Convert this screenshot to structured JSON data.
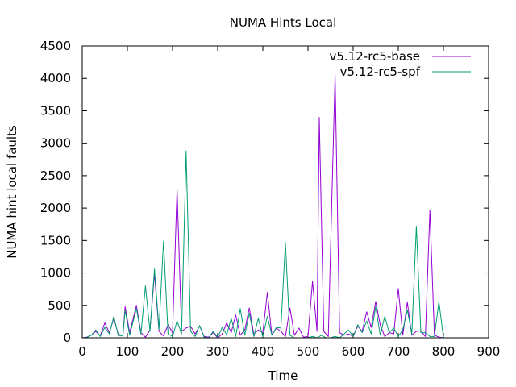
{
  "chart_data": {
    "type": "line",
    "title": "NUMA Hints Local",
    "xlabel": "Time",
    "ylabel": "NUMA hint local faults",
    "xlim": [
      0,
      900
    ],
    "ylim": [
      0,
      4500
    ],
    "xticks": [
      0,
      100,
      200,
      300,
      400,
      500,
      600,
      700,
      800,
      900
    ],
    "yticks": [
      0,
      500,
      1000,
      1500,
      2000,
      2500,
      3000,
      3500,
      4000,
      4500
    ],
    "grid": false,
    "legend_position": "top-right",
    "series": [
      {
        "name": "v5.12-rc5-base",
        "color": "#9400d3",
        "points": [
          [
            0,
            0
          ],
          [
            10,
            10
          ],
          [
            20,
            40
          ],
          [
            30,
            100
          ],
          [
            40,
            30
          ],
          [
            50,
            230
          ],
          [
            60,
            80
          ],
          [
            70,
            300
          ],
          [
            80,
            50
          ],
          [
            90,
            40
          ],
          [
            95,
            480
          ],
          [
            105,
            80
          ],
          [
            120,
            500
          ],
          [
            130,
            80
          ],
          [
            140,
            10
          ],
          [
            150,
            120
          ],
          [
            160,
            990
          ],
          [
            170,
            100
          ],
          [
            180,
            30
          ],
          [
            190,
            200
          ],
          [
            200,
            80
          ],
          [
            210,
            2300
          ],
          [
            220,
            100
          ],
          [
            230,
            150
          ],
          [
            240,
            180
          ],
          [
            250,
            60
          ],
          [
            260,
            180
          ],
          [
            270,
            20
          ],
          [
            280,
            10
          ],
          [
            290,
            80
          ],
          [
            300,
            0
          ],
          [
            310,
            60
          ],
          [
            320,
            230
          ],
          [
            330,
            80
          ],
          [
            340,
            350
          ],
          [
            350,
            40
          ],
          [
            360,
            120
          ],
          [
            370,
            460
          ],
          [
            380,
            60
          ],
          [
            390,
            120
          ],
          [
            400,
            80
          ],
          [
            410,
            700
          ],
          [
            420,
            40
          ],
          [
            430,
            150
          ],
          [
            440,
            100
          ],
          [
            450,
            20
          ],
          [
            460,
            460
          ],
          [
            470,
            40
          ],
          [
            480,
            150
          ],
          [
            490,
            10
          ],
          [
            500,
            20
          ],
          [
            510,
            870
          ],
          [
            520,
            100
          ],
          [
            525,
            3400
          ],
          [
            535,
            100
          ],
          [
            545,
            20
          ],
          [
            560,
            4060
          ],
          [
            570,
            80
          ],
          [
            580,
            40
          ],
          [
            590,
            60
          ],
          [
            600,
            20
          ],
          [
            610,
            180
          ],
          [
            620,
            100
          ],
          [
            630,
            400
          ],
          [
            640,
            160
          ],
          [
            650,
            560
          ],
          [
            660,
            200
          ],
          [
            670,
            20
          ],
          [
            680,
            80
          ],
          [
            690,
            60
          ],
          [
            700,
            760
          ],
          [
            710,
            40
          ],
          [
            720,
            550
          ],
          [
            730,
            40
          ],
          [
            740,
            100
          ],
          [
            750,
            110
          ],
          [
            760,
            20
          ],
          [
            770,
            1970
          ],
          [
            780,
            40
          ],
          [
            790,
            10
          ],
          [
            800,
            0
          ]
        ]
      },
      {
        "name": "v5.12-rc5-spf",
        "color": "#009e73",
        "points": [
          [
            0,
            0
          ],
          [
            10,
            5
          ],
          [
            20,
            40
          ],
          [
            30,
            120
          ],
          [
            40,
            20
          ],
          [
            50,
            160
          ],
          [
            60,
            60
          ],
          [
            70,
            330
          ],
          [
            80,
            30
          ],
          [
            90,
            30
          ],
          [
            95,
            420
          ],
          [
            105,
            40
          ],
          [
            120,
            450
          ],
          [
            130,
            60
          ],
          [
            140,
            800
          ],
          [
            150,
            100
          ],
          [
            160,
            1060
          ],
          [
            170,
            130
          ],
          [
            180,
            1490
          ],
          [
            190,
            60
          ],
          [
            200,
            20
          ],
          [
            210,
            260
          ],
          [
            220,
            60
          ],
          [
            230,
            2880
          ],
          [
            240,
            100
          ],
          [
            250,
            20
          ],
          [
            260,
            190
          ],
          [
            270,
            10
          ],
          [
            280,
            0
          ],
          [
            290,
            100
          ],
          [
            300,
            10
          ],
          [
            310,
            160
          ],
          [
            320,
            50
          ],
          [
            330,
            300
          ],
          [
            340,
            20
          ],
          [
            350,
            450
          ],
          [
            360,
            40
          ],
          [
            370,
            380
          ],
          [
            380,
            20
          ],
          [
            390,
            300
          ],
          [
            400,
            20
          ],
          [
            410,
            330
          ],
          [
            420,
            40
          ],
          [
            430,
            160
          ],
          [
            440,
            150
          ],
          [
            450,
            1470
          ],
          [
            460,
            40
          ],
          [
            470,
            0
          ],
          [
            480,
            0
          ],
          [
            490,
            0
          ],
          [
            500,
            0
          ],
          [
            510,
            20
          ],
          [
            520,
            0
          ],
          [
            530,
            40
          ],
          [
            540,
            0
          ],
          [
            550,
            0
          ],
          [
            560,
            20
          ],
          [
            570,
            0
          ],
          [
            580,
            60
          ],
          [
            590,
            120
          ],
          [
            600,
            20
          ],
          [
            610,
            200
          ],
          [
            620,
            80
          ],
          [
            630,
            260
          ],
          [
            640,
            60
          ],
          [
            650,
            480
          ],
          [
            660,
            40
          ],
          [
            670,
            330
          ],
          [
            680,
            80
          ],
          [
            690,
            150
          ],
          [
            700,
            20
          ],
          [
            710,
            120
          ],
          [
            720,
            430
          ],
          [
            730,
            60
          ],
          [
            740,
            1720
          ],
          [
            750,
            80
          ],
          [
            760,
            80
          ],
          [
            770,
            20
          ],
          [
            780,
            20
          ],
          [
            790,
            560
          ],
          [
            800,
            0
          ]
        ]
      }
    ]
  }
}
